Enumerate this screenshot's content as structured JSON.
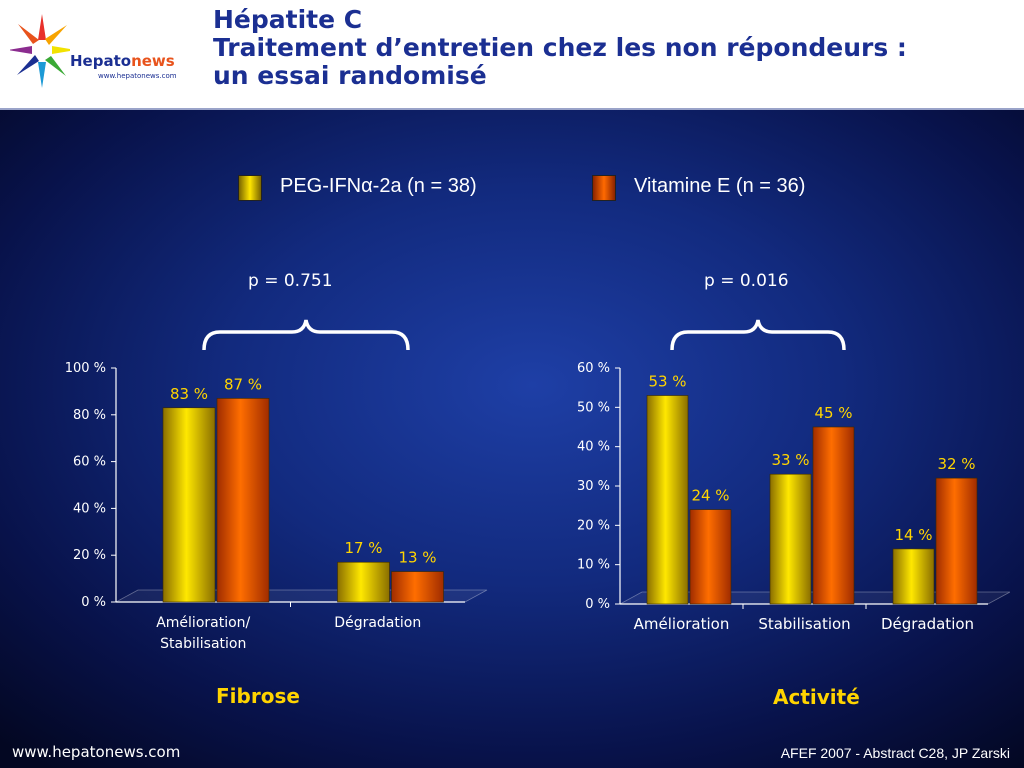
{
  "header": {
    "title_line1": "Hépatite C",
    "title_line2": "Traitement d’entretien chez les non répondeurs :",
    "title_line3": "un essai randomisé",
    "logo_word_a": "Hepato",
    "logo_word_b": "news",
    "logo_url": "www.hepatonews.com"
  },
  "legend": {
    "series_a": "PEG-IFNα-2a (n = 38)",
    "series_b": "Vitamine E (n = 36)"
  },
  "colors": {
    "series_a": "#f5d400",
    "series_b": "#ff6400",
    "title_blue": "#1b2f92",
    "label_yellow": "#ffd400"
  },
  "chart_data": [
    {
      "type": "bar",
      "title": "Fibrose",
      "p_value": "p = 0.751",
      "categories": [
        "Amélioration/\nStabilisation",
        "Dégradation"
      ],
      "category_lines": [
        [
          "Amélioration/",
          "Stabilisation"
        ],
        [
          "Dégradation"
        ]
      ],
      "series": [
        {
          "name": "PEG-IFNα-2a (n = 38)",
          "values": [
            83,
            17
          ],
          "labels": [
            "83 %",
            "17 %"
          ]
        },
        {
          "name": "Vitamine E (n = 36)",
          "values": [
            87,
            13
          ],
          "labels": [
            "87 %",
            "13 %"
          ]
        }
      ],
      "ylim": [
        0,
        100
      ],
      "yticks": [
        0,
        20,
        40,
        60,
        80,
        100
      ],
      "ytick_labels": [
        "0 %",
        "20 %",
        "40 %",
        "60 %",
        "80 %",
        "100 %"
      ]
    },
    {
      "type": "bar",
      "title": "Activité",
      "p_value": "p = 0.016",
      "categories": [
        "Amélioration",
        "Stabilisation",
        "Dégradation"
      ],
      "category_lines": [
        [
          "Amélioration"
        ],
        [
          "Stabilisation"
        ],
        [
          "Dégradation"
        ]
      ],
      "series": [
        {
          "name": "PEG-IFNα-2a (n = 38)",
          "values": [
            53,
            33,
            14
          ],
          "labels": [
            "53 %",
            "33 %",
            "14 %"
          ]
        },
        {
          "name": "Vitamine E (n = 36)",
          "values": [
            24,
            45,
            32
          ],
          "labels": [
            "24 %",
            "45 %",
            "32 %"
          ]
        }
      ],
      "ylim": [
        0,
        60
      ],
      "yticks": [
        0,
        10,
        20,
        30,
        40,
        50,
        60
      ],
      "ytick_labels": [
        "0 %",
        "10 %",
        "20 %",
        "30 %",
        "40 %",
        "50 %",
        "60 %"
      ]
    }
  ],
  "footer": {
    "left": "www.hepatonews.com",
    "right": "AFEF 2007 - Abstract C28, JP Zarski"
  }
}
